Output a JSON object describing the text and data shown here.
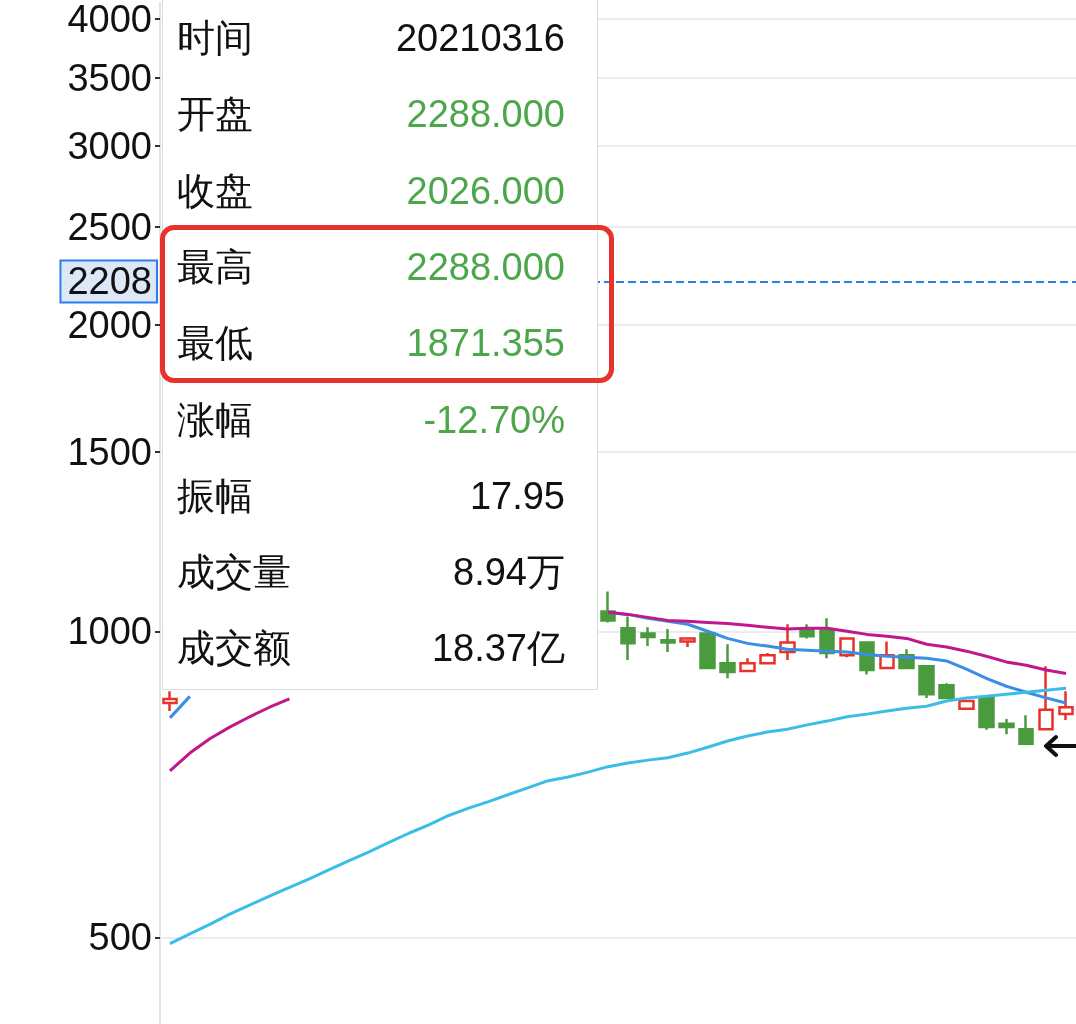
{
  "chart_data": [
    {
      "type": "candlestick",
      "categories": [
        null,
        null,
        null,
        null,
        null,
        null,
        null,
        null,
        null,
        null,
        null,
        null,
        null,
        null,
        null,
        null,
        null,
        null,
        null,
        null,
        null,
        null,
        null,
        null,
        null,
        null,
        null,
        null,
        null,
        null,
        null,
        null,
        null,
        null,
        null,
        null,
        null,
        null,
        null,
        null,
        null,
        null,
        null,
        null,
        null,
        null
      ],
      "series": [
        {
          "type": "candlestick",
          "ohlc": [
            [
              850,
              873,
              835,
              858
            ],
            null,
            null,
            null,
            null,
            null,
            null,
            null,
            null,
            null,
            null,
            null,
            null,
            null,
            null,
            null,
            null,
            null,
            null,
            null,
            null,
            null,
            [
              1046,
              1094,
              1020,
              1025
            ],
            [
              1007,
              1034,
              937,
              973
            ],
            [
              995,
              1009,
              967,
              987
            ],
            [
              980,
              1005,
              954,
              975
            ],
            [
              977,
              984,
              965,
              984
            ],
            [
              995,
              995,
              920,
              920
            ],
            [
              930,
              971,
              899,
              912
            ],
            [
              914,
              941,
              914,
              930
            ],
            [
              930,
              952,
              928,
              947
            ],
            [
              954,
              1016,
              937,
              975
            ],
            [
              1005,
              1016,
              984,
              989
            ],
            [
              1002,
              1030,
              941,
              952
            ],
            [
              947,
              984,
              943,
              984
            ],
            [
              975,
              975,
              907,
              916
            ],
            [
              920,
              977,
              920,
              947
            ],
            [
              947,
              960,
              920,
              920
            ],
            [
              924,
              924,
              860,
              867
            ],
            [
              885,
              889,
              860,
              860
            ],
            [
              839,
              854,
              839,
              854
            ],
            [
              860,
              860,
              800,
              805
            ],
            [
              811,
              820,
              792,
              805
            ],
            [
              801,
              827,
              775,
              775
            ],
            [
              801,
              924,
              801,
              837
            ],
            [
              829,
              873,
              818,
              842
            ]
          ],
          "colors": [
            "#e8322b",
            null,
            null,
            null,
            null,
            null,
            null,
            null,
            null,
            null,
            null,
            null,
            null,
            null,
            null,
            null,
            null,
            null,
            null,
            null,
            null,
            null,
            "#4a9a3e",
            "#4a9a3e",
            "#4a9a3e",
            "#4a9a3e",
            "#e8322b",
            "#4a9a3e",
            "#4a9a3e",
            "#e8322b",
            "#e8322b",
            "#e8322b",
            "#4a9a3e",
            "#4a9a3e",
            "#e8322b",
            "#4a9a3e",
            "#e8322b",
            "#4a9a3e",
            "#4a9a3e",
            "#4a9a3e",
            "#e8322b",
            "#4a9a3e",
            "#4a9a3e",
            "#4a9a3e",
            "#e8322b",
            "#e8322b"
          ]
        },
        {
          "type": "line",
          "color": "#3a8ee6",
          "values": [
            822,
            863,
            null,
            null,
            null,
            null,
            null,
            null,
            null,
            null,
            null,
            null,
            null,
            null,
            null,
            null,
            null,
            null,
            null,
            null,
            null,
            null,
            1044,
            1039,
            1030,
            1023,
            1016,
            1000,
            984,
            973,
            967,
            960,
            958,
            956,
            954,
            949,
            945,
            943,
            941,
            935,
            918,
            899,
            883,
            871,
            860,
            850
          ]
        },
        {
          "type": "line",
          "color": "#c0188c",
          "values": [
            729,
            759,
            784,
            805,
            824,
            842,
            858,
            null,
            null,
            null,
            null,
            null,
            null,
            null,
            null,
            null,
            null,
            null,
            null,
            null,
            null,
            null,
            1044,
            1039,
            1032,
            1025,
            1023,
            1020,
            1018,
            1014,
            1009,
            1005,
            1007,
            1007,
            1000,
            993,
            989,
            984,
            971,
            965,
            956,
            945,
            933,
            926,
            916,
            909
          ]
        },
        {
          "type": "line",
          "color": "#3cbde8",
          "values": [
            493,
            504,
            515,
            527,
            538,
            549,
            560,
            571,
            583,
            595,
            607,
            620,
            633,
            645,
            659,
            670,
            680,
            691,
            702,
            713,
            719,
            727,
            736,
            742,
            747,
            751,
            759,
            769,
            780,
            789,
            796,
            801,
            809,
            816,
            824,
            829,
            835,
            840,
            844,
            854,
            860,
            863,
            867,
            871,
            875,
            879
          ]
        }
      ],
      "ylim": [
        411,
        4150
      ],
      "yticks": [
        500,
        1000,
        1500,
        2000,
        2500,
        3000,
        3500,
        4000
      ],
      "log": true,
      "grid": "y",
      "marker": "none",
      "tick_labels": "y",
      "ref_lines": [
        {
          "axis": "y",
          "value": 2208,
          "label": "2208",
          "color": "#2b7de9",
          "line_style": "dashed"
        }
      ]
    },
    {
      "type": "other",
      "categories": [
        "时间",
        "开盘",
        "收盘",
        "最高",
        "最低",
        "涨幅",
        "振幅",
        "成交量",
        "成交额"
      ],
      "value_labels": [
        "20210316",
        "2288.000",
        "2026.000",
        "2288.000",
        "1871.355",
        "-12.70%",
        "17.95",
        "8.94万",
        "18.37亿"
      ],
      "colors": [
        "#111111",
        "#4ca64a",
        "#4ca64a",
        "#4ca64a",
        "#4ca64a",
        "#4ca64a",
        "#111111",
        "#111111",
        "#111111"
      ]
    }
  ]
}
